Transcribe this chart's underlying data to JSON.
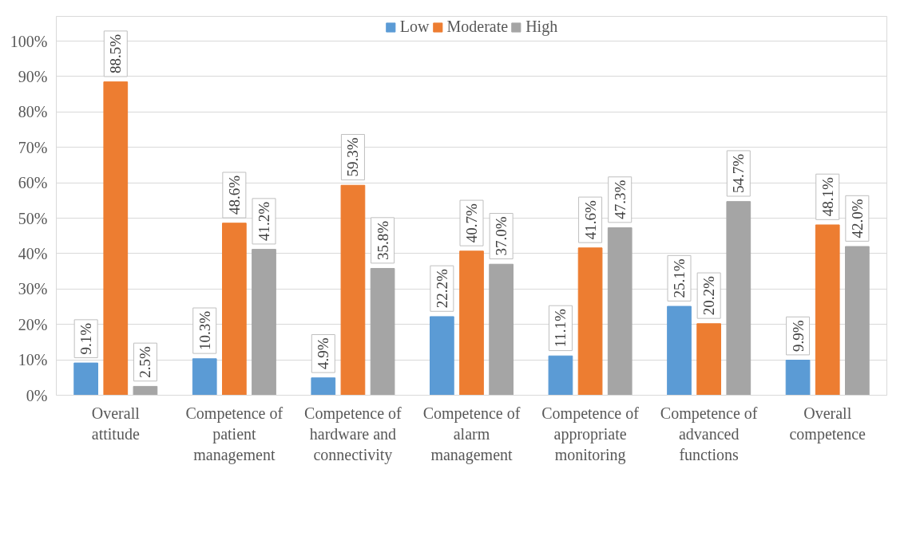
{
  "chart_data": {
    "type": "bar",
    "categories": [
      "Overall attitude",
      "Competence of patient management",
      "Competence of hardware and connectivity",
      "Competence of alarm management",
      "Competence of appropriate monitoring",
      "Competence of advanced functions",
      "Overall competence"
    ],
    "series": [
      {
        "name": "Low",
        "color": "#5b9bd5",
        "values": [
          9.1,
          10.3,
          4.9,
          22.2,
          11.1,
          25.1,
          9.9
        ],
        "value_labels": [
          "9.1%",
          "10.3%",
          "4.9%",
          "22.2%",
          "11.1%",
          "25.1%",
          "9.9%"
        ]
      },
      {
        "name": "Moderate",
        "color": "#ed7d31",
        "values": [
          88.5,
          48.6,
          59.3,
          40.7,
          41.6,
          20.2,
          48.1
        ],
        "value_labels": [
          "88.5%",
          "48.6%",
          "59.3%",
          "40.7%",
          "41.6%",
          "20.2%",
          "48.1%"
        ]
      },
      {
        "name": "High",
        "color": "#a5a5a5",
        "values": [
          2.5,
          41.2,
          35.8,
          37.0,
          47.3,
          54.7,
          42.0
        ],
        "value_labels": [
          "2.5%",
          "41.2%",
          "35.8%",
          "37.0%",
          "47.3%",
          "54.7%",
          "42.0%"
        ]
      }
    ],
    "ylim": [
      0,
      107
    ],
    "yticks": [
      {
        "value": 0,
        "label": "0%"
      },
      {
        "value": 10,
        "label": "10%"
      },
      {
        "value": 20,
        "label": "20%"
      },
      {
        "value": 30,
        "label": "30%"
      },
      {
        "value": 40,
        "label": "40%"
      },
      {
        "value": 50,
        "label": "50%"
      },
      {
        "value": 60,
        "label": "60%"
      },
      {
        "value": 70,
        "label": "70%"
      },
      {
        "value": 80,
        "label": "80%"
      },
      {
        "value": 90,
        "label": "90%"
      },
      {
        "value": 100,
        "label": "100%"
      }
    ],
    "grid": "y",
    "legend": "top"
  }
}
